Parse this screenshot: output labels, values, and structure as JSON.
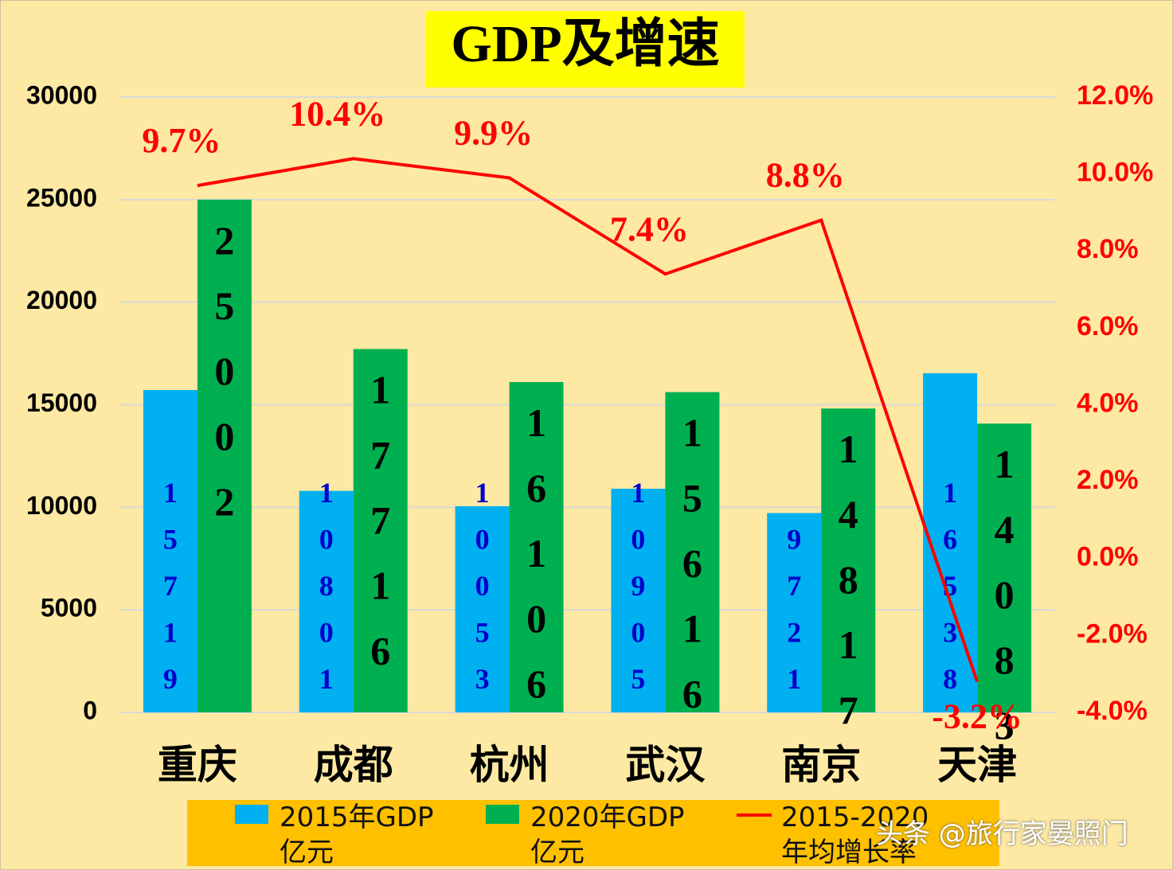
{
  "chart_data": {
    "type": "bar-line",
    "title": "GDP及增速",
    "categories": [
      "重庆",
      "成都",
      "杭州",
      "武汉",
      "南京",
      "天津"
    ],
    "series": [
      {
        "name": "2015年GDP\n亿元",
        "color": "#00b0f0",
        "type": "bar",
        "values": [
          15719,
          10801,
          10053,
          10905,
          9721,
          16538
        ]
      },
      {
        "name": "2020年GDP\n亿元",
        "color": "#00b050",
        "type": "bar",
        "values": [
          25002,
          17716,
          16106,
          15616,
          14817,
          14083
        ]
      },
      {
        "name": "2015-2020\n年均增长率",
        "color": "#ff0000",
        "type": "line",
        "axis": "y2",
        "values": [
          9.7,
          10.4,
          9.9,
          7.4,
          8.8,
          -3.2
        ],
        "value_labels": [
          "9.7%",
          "10.4%",
          "9.9%",
          "7.4%",
          "8.8%",
          "-3.2%"
        ]
      }
    ],
    "ylim": [
      0,
      30000
    ],
    "yticks": [
      0,
      5000,
      10000,
      15000,
      20000,
      25000,
      30000
    ],
    "y2lim": [
      -4,
      12
    ],
    "y2ticks": [
      {
        "value": -4,
        "label": "-4.0%"
      },
      {
        "value": -2,
        "label": "-2.0%"
      },
      {
        "value": 0,
        "label": "0.0%"
      },
      {
        "value": 2,
        "label": "2.0%"
      },
      {
        "value": 4,
        "label": "4.0%"
      },
      {
        "value": 6,
        "label": "6.0%"
      },
      {
        "value": 8,
        "label": "8.0%"
      },
      {
        "value": 10,
        "label": "10.0%"
      },
      {
        "value": 12,
        "label": "12.0%"
      }
    ],
    "grid": true,
    "legend": "bottom",
    "watermark": "头条 @旅行家晏照门"
  }
}
